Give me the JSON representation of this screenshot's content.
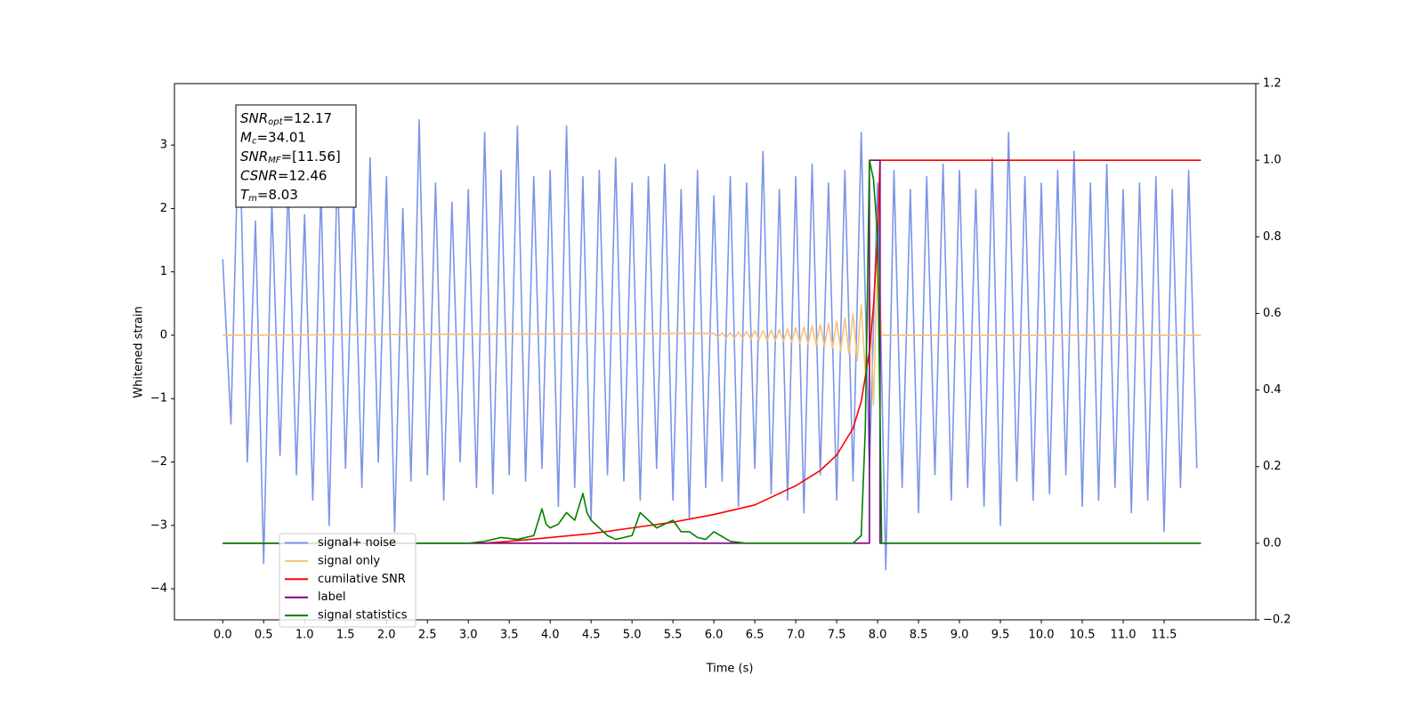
{
  "chart_data": {
    "type": "line",
    "xlabel": "Time (s)",
    "ylabel": "Whitened strain",
    "xlim": [
      -0.59,
      12.62
    ],
    "ylim": [
      -4.49,
      3.97
    ],
    "y2lim": [
      -0.2,
      1.2
    ],
    "xticks": [
      {
        "value": 0,
        "label": "0.0"
      },
      {
        "value": 0.5,
        "label": "0.5"
      },
      {
        "value": 1,
        "label": "1.0"
      },
      {
        "value": 1.5,
        "label": "1.5"
      },
      {
        "value": 2,
        "label": "2.0"
      },
      {
        "value": 2.5,
        "label": "2.5"
      },
      {
        "value": 3,
        "label": "3.0"
      },
      {
        "value": 3.5,
        "label": "3.5"
      },
      {
        "value": 4,
        "label": "4.0"
      },
      {
        "value": 4.5,
        "label": "4.5"
      },
      {
        "value": 5,
        "label": "5.0"
      },
      {
        "value": 5.5,
        "label": "5.5"
      },
      {
        "value": 6,
        "label": "6.0"
      },
      {
        "value": 6.5,
        "label": "6.5"
      },
      {
        "value": 7,
        "label": "7.0"
      },
      {
        "value": 7.5,
        "label": "7.5"
      },
      {
        "value": 8,
        "label": "8.0"
      },
      {
        "value": 8.5,
        "label": "8.5"
      },
      {
        "value": 9,
        "label": "9.0"
      },
      {
        "value": 9.5,
        "label": "9.5"
      },
      {
        "value": 10,
        "label": "10.0"
      },
      {
        "value": 10.5,
        "label": "10.5"
      },
      {
        "value": 11,
        "label": "11.0"
      },
      {
        "value": 11.5,
        "label": "11.5"
      }
    ],
    "yticks": [
      {
        "value": -4,
        "label": "−4"
      },
      {
        "value": -3,
        "label": "−3"
      },
      {
        "value": -2,
        "label": "−2"
      },
      {
        "value": -1,
        "label": "−1"
      },
      0,
      1,
      2,
      3
    ],
    "y2ticks": [
      {
        "value": -0.2,
        "label": "−0.2"
      },
      {
        "value": 0,
        "label": "0.0"
      },
      {
        "value": 0.2,
        "label": "0.2"
      },
      {
        "value": 0.4,
        "label": "0.4"
      },
      {
        "value": 0.6,
        "label": "0.6"
      },
      {
        "value": 0.8,
        "label": "0.8"
      },
      {
        "value": 1,
        "label": "1.0"
      },
      {
        "value": 1.2,
        "label": "1.2"
      }
    ],
    "legend_position": "lower left",
    "annotation": [
      {
        "main": "SNR",
        "sub": "opt",
        "rest": "=12.17"
      },
      {
        "main": "M",
        "sub": "c",
        "rest": "=34.01"
      },
      {
        "main": "SNR",
        "sub": "MF",
        "rest": "=[11.56]"
      },
      {
        "main": "CSNR",
        "rest": "=12.46"
      },
      {
        "main": "T",
        "sub": "m",
        "rest": "=8.03"
      }
    ],
    "series": [
      {
        "name": "signal+ noise",
        "color": "#7b95e8",
        "x": [
          0,
          0.1,
          0.2,
          0.3,
          0.4,
          0.5,
          0.6,
          0.7,
          0.8,
          0.9,
          1,
          1.1,
          1.2,
          1.3,
          1.4,
          1.5,
          1.6,
          1.7,
          1.8,
          1.9,
          2,
          2.1,
          2.2,
          2.3,
          2.4,
          2.5,
          2.6,
          2.7,
          2.8,
          2.9,
          3,
          3.1,
          3.2,
          3.3,
          3.4,
          3.5,
          3.6,
          3.7,
          3.8,
          3.9,
          4,
          4.1,
          4.2,
          4.3,
          4.4,
          4.5,
          4.6,
          4.7,
          4.8,
          4.9,
          5,
          5.1,
          5.2,
          5.3,
          5.4,
          5.5,
          5.6,
          5.7,
          5.8,
          5.9,
          6,
          6.1,
          6.2,
          6.3,
          6.4,
          6.5,
          6.6,
          6.7,
          6.8,
          6.9,
          7,
          7.1,
          7.2,
          7.3,
          7.4,
          7.5,
          7.6,
          7.7,
          7.8,
          7.9,
          8,
          8.1,
          8.2,
          8.3,
          8.4,
          8.5,
          8.6,
          8.7,
          8.8,
          8.9,
          9,
          9.1,
          9.2,
          9.3,
          9.4,
          9.5,
          9.6,
          9.7,
          9.8,
          9.9,
          10,
          10.1,
          10.2,
          10.3,
          10.4,
          10.5,
          10.6,
          10.7,
          10.8,
          10.9,
          11,
          11.1,
          11.2,
          11.3,
          11.4,
          11.5,
          11.6,
          11.7,
          11.8,
          11.9
        ],
        "values": [
          1.2,
          -1.4,
          3.6,
          -2.0,
          1.8,
          -3.6,
          2.1,
          -1.9,
          2.4,
          -2.2,
          1.9,
          -2.6,
          2.3,
          -3.0,
          2.7,
          -2.1,
          2.2,
          -2.4,
          2.8,
          -2.0,
          2.5,
          -3.1,
          2.0,
          -2.3,
          3.4,
          -2.2,
          2.4,
          -2.6,
          2.1,
          -2.0,
          2.3,
          -2.4,
          3.2,
          -2.5,
          2.6,
          -2.2,
          3.3,
          -2.3,
          2.5,
          -2.1,
          2.6,
          -2.7,
          3.3,
          -2.4,
          2.5,
          -2.9,
          2.6,
          -2.2,
          2.8,
          -2.3,
          2.4,
          -2.6,
          2.5,
          -2.1,
          2.7,
          -2.6,
          2.3,
          -2.9,
          2.6,
          -2.4,
          2.2,
          -2.3,
          2.5,
          -2.7,
          2.4,
          -2.1,
          2.9,
          -2.5,
          2.3,
          -2.6,
          2.5,
          -2.8,
          2.7,
          -2.2,
          2.4,
          -2.6,
          2.6,
          -2.3,
          3.2,
          -2.1,
          2.4,
          -3.7,
          2.6,
          -2.4,
          2.3,
          -2.8,
          2.5,
          -2.2,
          2.7,
          -2.6,
          2.6,
          -2.4,
          2.3,
          -2.7,
          2.8,
          -3.0,
          3.2,
          -2.3,
          2.5,
          -2.6,
          2.4,
          -2.5,
          2.6,
          -2.2,
          2.9,
          -2.7,
          2.4,
          -2.6,
          2.7,
          -2.4,
          2.3,
          -2.8,
          2.4,
          -2.6,
          2.5,
          -3.1,
          2.3,
          -2.4,
          2.6,
          -2.1
        ]
      },
      {
        "name": "signal only",
        "color": "#f6c27a",
        "x": [
          0,
          6.0,
          6.05,
          6.1,
          6.15,
          6.2,
          6.25,
          6.3,
          6.35,
          6.4,
          6.45,
          6.5,
          6.55,
          6.6,
          6.65,
          6.7,
          6.75,
          6.8,
          6.85,
          6.9,
          6.95,
          7.0,
          7.05,
          7.1,
          7.15,
          7.2,
          7.25,
          7.3,
          7.35,
          7.4,
          7.45,
          7.5,
          7.55,
          7.6,
          7.65,
          7.7,
          7.75,
          7.8,
          7.85,
          7.9,
          7.95,
          8.0,
          8.05,
          11.95
        ],
        "values": [
          0,
          0.03,
          -0.03,
          0.04,
          -0.04,
          0.04,
          -0.05,
          0.05,
          -0.05,
          0.06,
          -0.06,
          0.07,
          -0.07,
          0.07,
          -0.08,
          0.08,
          -0.09,
          0.09,
          -0.1,
          0.1,
          -0.11,
          0.12,
          -0.12,
          0.13,
          -0.14,
          0.15,
          -0.16,
          0.17,
          -0.18,
          0.19,
          -0.2,
          0.22,
          -0.24,
          0.27,
          -0.3,
          0.34,
          -0.4,
          0.48,
          -0.6,
          0.8,
          -1.1,
          1.3,
          0,
          0
        ]
      },
      {
        "name": "cumilative SNR",
        "color": "#ff0000",
        "axis": "y2",
        "x": [
          0,
          3.2,
          3.5,
          4.0,
          4.5,
          5.0,
          5.5,
          6.0,
          6.5,
          7.0,
          7.3,
          7.5,
          7.7,
          7.8,
          7.9,
          7.95,
          8.0,
          8.03,
          11.95
        ],
        "values": [
          0,
          0,
          0.005,
          0.015,
          0.025,
          0.04,
          0.055,
          0.075,
          0.1,
          0.15,
          0.19,
          0.23,
          0.3,
          0.37,
          0.5,
          0.62,
          0.8,
          1.0,
          1.0
        ]
      },
      {
        "name": "label",
        "color": "#800080",
        "axis": "y2",
        "x": [
          0,
          7.9,
          7.9,
          8.03,
          8.03,
          11.95
        ],
        "values": [
          0,
          0,
          1,
          1,
          0,
          0
        ]
      },
      {
        "name": "signal statistics",
        "color": "#008000",
        "axis": "y2",
        "x": [
          0,
          3.0,
          3.2,
          3.4,
          3.6,
          3.8,
          3.9,
          3.95,
          4.0,
          4.1,
          4.2,
          4.3,
          4.4,
          4.45,
          4.5,
          4.6,
          4.7,
          4.8,
          5.0,
          5.1,
          5.2,
          5.3,
          5.5,
          5.6,
          5.7,
          5.8,
          5.9,
          6.0,
          6.2,
          6.4,
          7.7,
          7.8,
          7.85,
          7.9,
          7.95,
          8.0,
          8.05,
          11.95
        ],
        "values": [
          0,
          0,
          0.005,
          0.015,
          0.01,
          0.02,
          0.09,
          0.05,
          0.04,
          0.05,
          0.08,
          0.06,
          0.13,
          0.08,
          0.06,
          0.04,
          0.02,
          0.01,
          0.02,
          0.08,
          0.06,
          0.04,
          0.06,
          0.03,
          0.03,
          0.015,
          0.01,
          0.03,
          0.005,
          0,
          0,
          0.02,
          0.3,
          1.0,
          0.95,
          0.8,
          0,
          0
        ]
      }
    ]
  }
}
